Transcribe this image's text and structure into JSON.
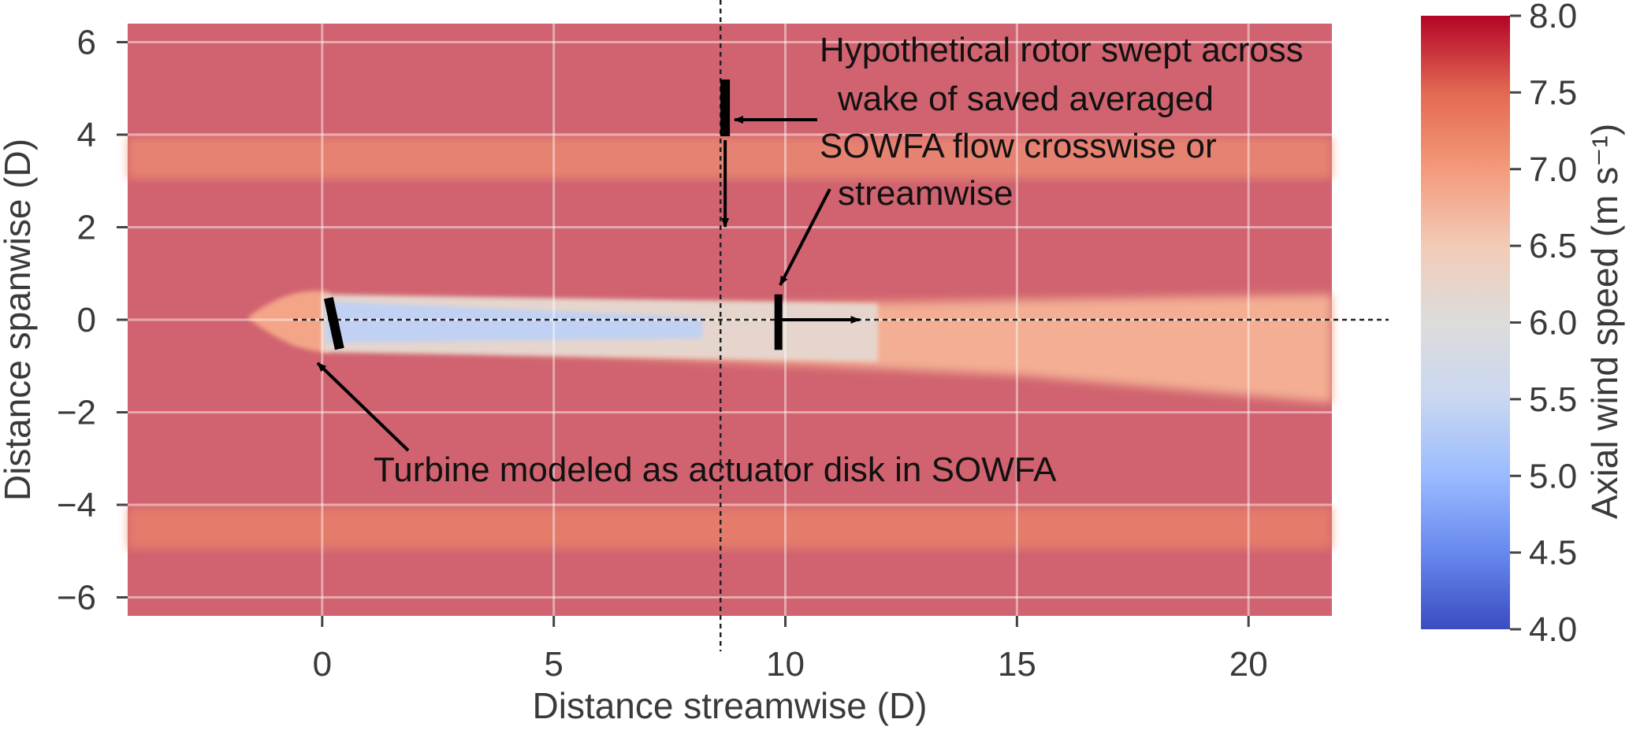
{
  "chart_data": {
    "type": "heatmap",
    "title": "",
    "xlabel": "Distance streamwise (D)",
    "ylabel": "Distance spanwise (D)",
    "xlim": [
      -4.2,
      21.8
    ],
    "ylim": [
      -6.4,
      6.4
    ],
    "x_ticks": [
      0,
      5,
      10,
      15,
      20
    ],
    "x_tick_labels": [
      "0",
      "5",
      "10",
      "15",
      "20"
    ],
    "y_ticks": [
      6,
      4,
      2,
      0,
      -2,
      -4,
      -6
    ],
    "y_tick_labels": [
      "6",
      "4",
      "2",
      "0",
      "−2",
      "−4",
      "−6"
    ],
    "grid": true,
    "colorbar": {
      "label": "Axial wind speed (m s⁻¹)",
      "min": 4.0,
      "max": 8.0,
      "ticks": [
        "8.0",
        "7.5",
        "7.0",
        "6.5",
        "6.0",
        "5.5",
        "5.0",
        "4.5",
        "4.0"
      ],
      "colormap": "coolwarm"
    },
    "field": {
      "background_speed": 7.5,
      "turbine_x": 0,
      "turbine_y": 0,
      "wake_min_speed": 5.4,
      "wake_recovery_speed": 6.8,
      "wake_half_width_D": [
        0.35,
        0.7
      ],
      "band_speeds": [
        {
          "y": 3.5,
          "speed": 7.1
        },
        {
          "y": -4.5,
          "speed": 7.2
        }
      ]
    },
    "reference_lines": [
      {
        "orientation": "vertical",
        "x": 8.6,
        "style": "dashed"
      },
      {
        "orientation": "horizontal",
        "y": 0,
        "style": "dashed"
      }
    ],
    "annotations": [
      "Hypothetical rotor swept across wake of saved averaged SOWFA flow crosswise or streamwise",
      "Turbine modeled as actuator disk in SOWFA"
    ]
  },
  "annotations": {
    "rotor_lines": [
      "Hypothetical rotor swept across",
      "wake of saved averaged",
      "SOWFA flow crosswise or",
      "streamwise"
    ],
    "turbine": "Turbine modeled as actuator disk in SOWFA"
  }
}
